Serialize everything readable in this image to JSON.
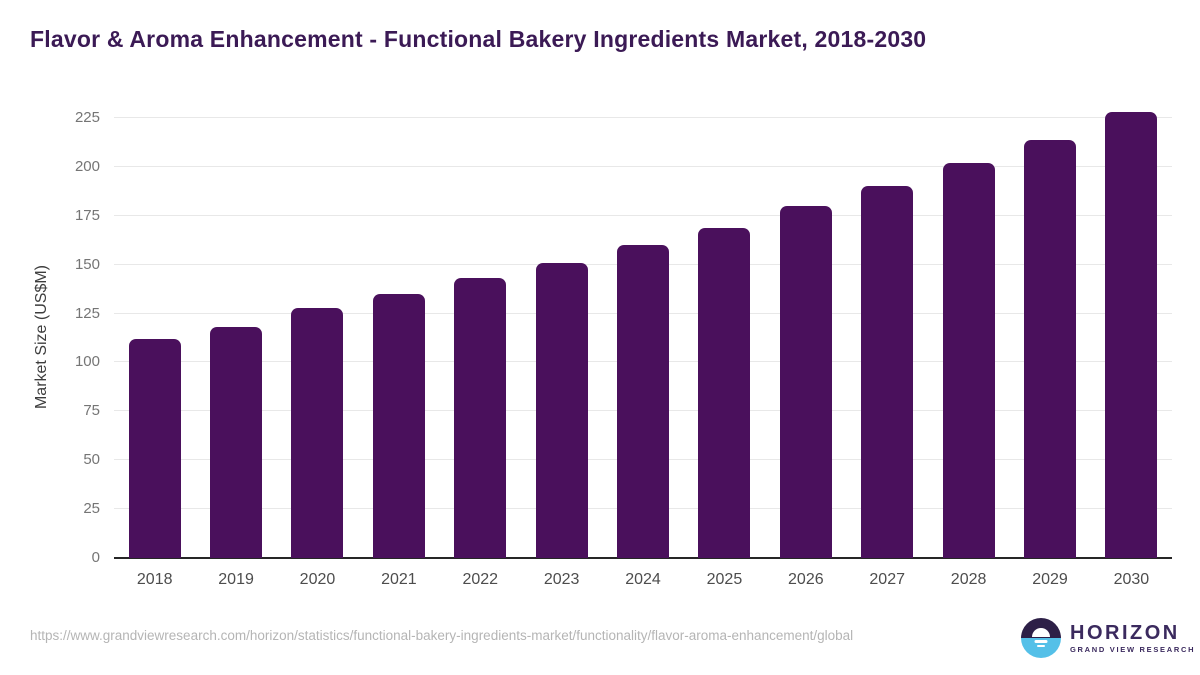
{
  "page_title": "Flavor & Aroma Enhancement - Functional Bakery Ingredients Market, 2018-2030",
  "chart_data": {
    "type": "bar",
    "title": "Flavor & Aroma Enhancement - Functional Bakery Ingredients Market, 2018-2030",
    "xlabel": "",
    "ylabel": "Market Size (US$M)",
    "categories": [
      "2018",
      "2019",
      "2020",
      "2021",
      "2022",
      "2023",
      "2024",
      "2025",
      "2026",
      "2027",
      "2028",
      "2029",
      "2030"
    ],
    "values": [
      112,
      118,
      128,
      135,
      143,
      151,
      160,
      169,
      180,
      190,
      202,
      214,
      228
    ],
    "y_ticks": [
      0,
      25,
      50,
      75,
      100,
      125,
      150,
      175,
      200,
      225
    ],
    "ylim": [
      0,
      239
    ],
    "grid": true,
    "legend": "none"
  },
  "footer": {
    "source_url": "https://www.grandviewresearch.com/horizon/statistics/functional-bakery-ingredients-market/functionality/flavor-aroma-enhancement/global",
    "logo_title": "HORIZON",
    "logo_subtitle": "GRAND VIEW RESEARCH"
  },
  "colors": {
    "bar": "#4a105c",
    "title_text": "#3b1a55",
    "axis_line": "#262626",
    "gridline": "#e8e8e8",
    "tick_label": "#757575",
    "year_label": "#4d4d4d",
    "url_text": "#b5b5b5",
    "logo_navy": "#2d1f47",
    "logo_blue": "#54c0e8",
    "logo_text": "#3b2a5e"
  }
}
